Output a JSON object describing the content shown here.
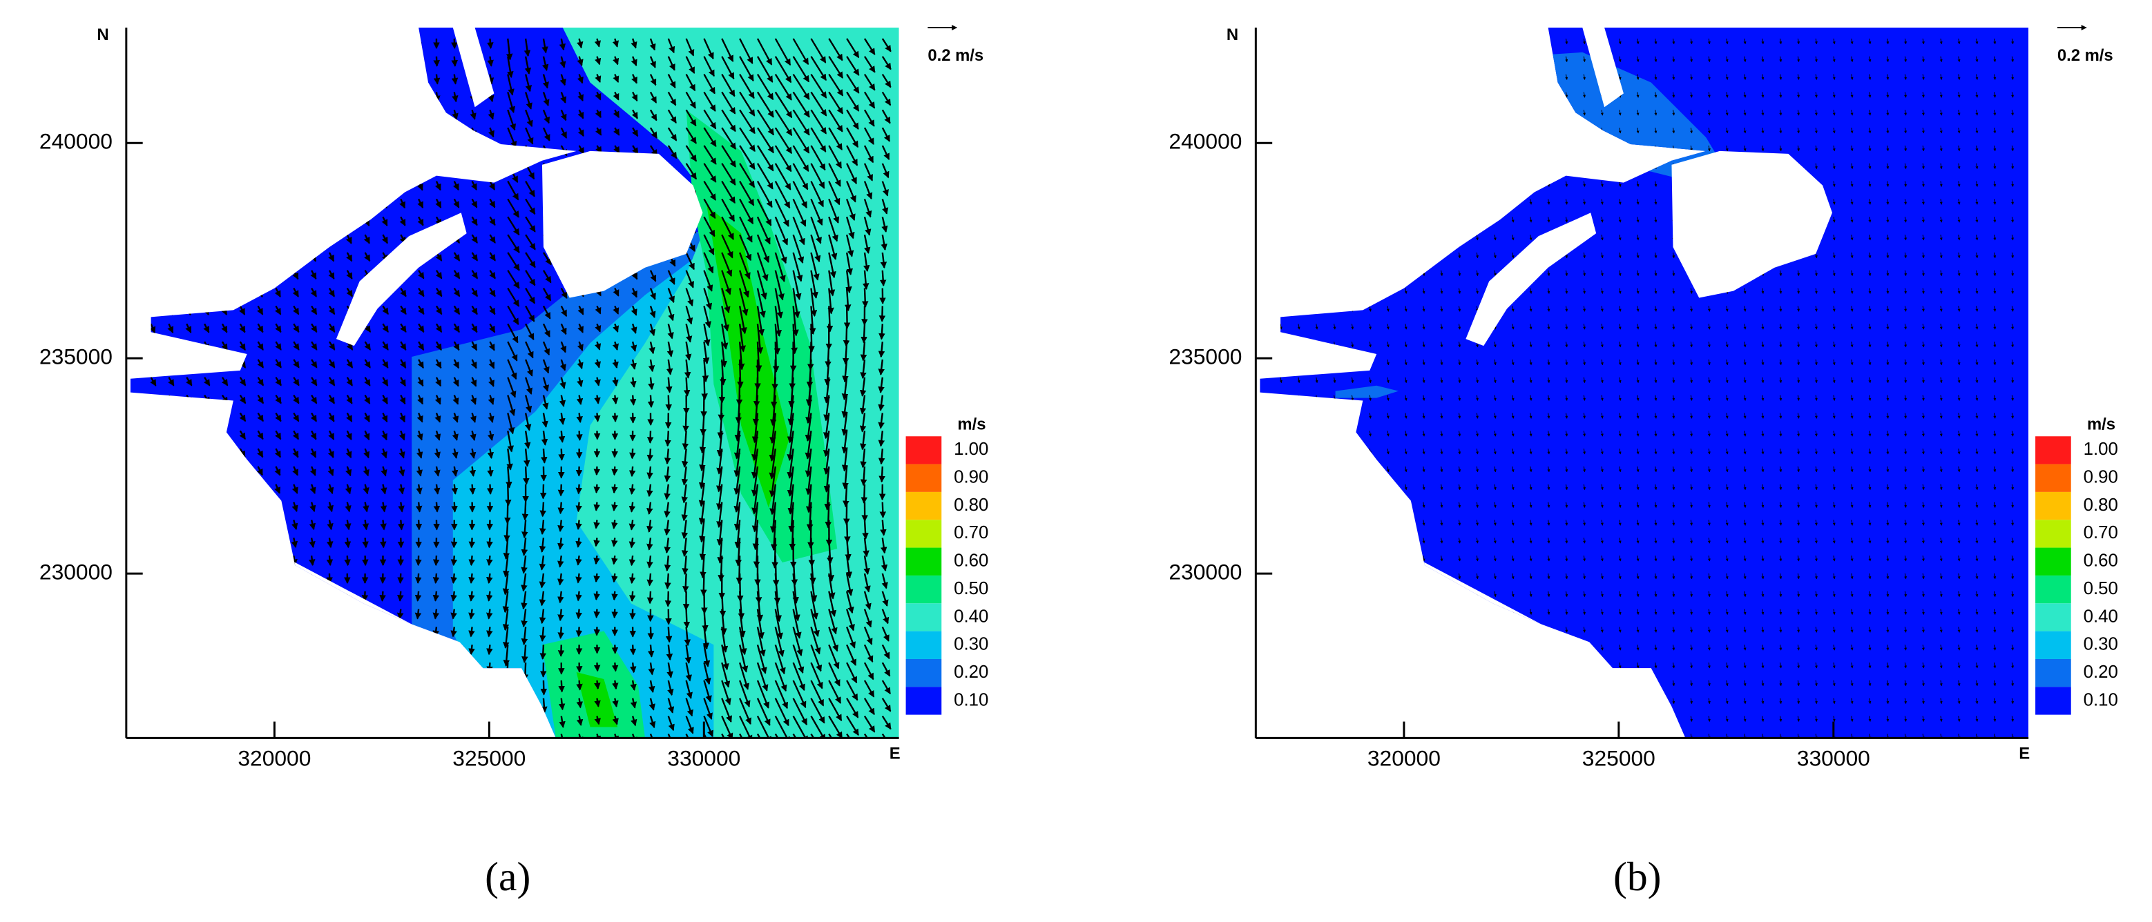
{
  "chart_data": [
    {
      "type": "contour-map",
      "panel_label": "(a)",
      "x_end_label": "E",
      "y_end_label": "N",
      "reference_vector_label": "0.2  m/s",
      "xlim": [
        316550,
        334540
      ],
      "ylim": [
        226180,
        242680
      ],
      "xticks": [
        320000,
        325000,
        330000
      ],
      "yticks": [
        230000,
        235000,
        240000
      ],
      "colorbar": {
        "title": "m/s",
        "levels": [
          {
            "value": 1.0,
            "label": "1.00"
          },
          {
            "value": 0.9,
            "label": "0.90"
          },
          {
            "value": 0.8,
            "label": "0.80"
          },
          {
            "value": 0.7,
            "label": "0.70"
          },
          {
            "value": 0.6,
            "label": "0.60"
          },
          {
            "value": 0.5,
            "label": "0.50"
          },
          {
            "value": 0.4,
            "label": "0.40"
          },
          {
            "value": 0.3,
            "label": "0.30"
          },
          {
            "value": 0.2,
            "label": "0.20"
          },
          {
            "value": 0.1,
            "label": "0.10"
          }
        ],
        "colors": [
          "#ff1a1a",
          "#ff6600",
          "#ffc000",
          "#b8f000",
          "#00dc00",
          "#00e67a",
          "#2de8c8",
          "#00c0f0",
          "#0a6ef0",
          "#0010ff"
        ]
      }
    },
    {
      "type": "contour-map",
      "panel_label": "(b)",
      "x_end_label": "E",
      "y_end_label": "N",
      "reference_vector_label": "0.2  m/s",
      "xlim": [
        316550,
        334540
      ],
      "ylim": [
        226180,
        242680
      ],
      "xticks": [
        320000,
        325000,
        330000
      ],
      "yticks": [
        230000,
        235000,
        240000
      ],
      "colorbar": {
        "title": "m/s",
        "levels": [
          {
            "value": 1.0,
            "label": "1.00"
          },
          {
            "value": 0.9,
            "label": "0.90"
          },
          {
            "value": 0.8,
            "label": "0.80"
          },
          {
            "value": 0.7,
            "label": "0.70"
          },
          {
            "value": 0.6,
            "label": "0.60"
          },
          {
            "value": 0.5,
            "label": "0.50"
          },
          {
            "value": 0.4,
            "label": "0.40"
          },
          {
            "value": 0.3,
            "label": "0.30"
          },
          {
            "value": 0.2,
            "label": "0.20"
          },
          {
            "value": 0.1,
            "label": "0.10"
          }
        ],
        "colors": [
          "#ff1a1a",
          "#ff6600",
          "#ffc000",
          "#b8f000",
          "#00dc00",
          "#00e67a",
          "#2de8c8",
          "#00c0f0",
          "#0a6ef0",
          "#0010ff"
        ]
      }
    }
  ]
}
